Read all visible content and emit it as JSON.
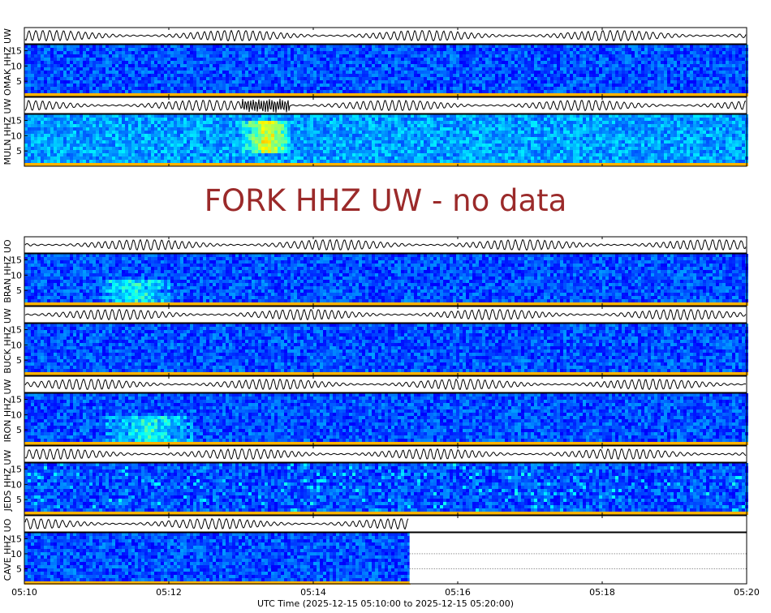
{
  "chart_data": {
    "type": "heatmap",
    "title": "",
    "xlabel": "UTC Time (2025-12-15 05:10:00 to 2025-12-15 05:20:00)",
    "x_ticks": [
      "05:10",
      "05:12",
      "05:14",
      "05:16",
      "05:18",
      "05:20"
    ],
    "xlim": [
      "05:10",
      "05:20"
    ],
    "y_ticks": [
      5,
      10,
      15
    ],
    "ylim": [
      0,
      17
    ],
    "colormap": "jet",
    "panels": [
      {
        "station": "OMAK HHZ UW",
        "data_end": "05:20",
        "event": null
      },
      {
        "station": "MULN HHZ UW",
        "data_end": "05:20",
        "event": {
          "start": "05:13:00",
          "end": "05:13:40",
          "band": [
            4,
            15
          ]
        }
      },
      {
        "station": "FORK HHZ UW",
        "status": "FORK HHZ UW - no data"
      },
      {
        "station": "BRAN HHZ UO",
        "data_end": "05:20",
        "event": {
          "start": "05:11:00",
          "end": "05:12:00",
          "band": [
            1,
            8
          ]
        }
      },
      {
        "station": "BUCK HHZ UW",
        "data_end": "05:20",
        "event": null
      },
      {
        "station": "IRON HHZ UW",
        "data_end": "05:20",
        "event": {
          "start": "05:11:05",
          "end": "05:12:20",
          "band": [
            1,
            10
          ]
        }
      },
      {
        "station": "JEDS HHZ UW",
        "data_end": "05:20",
        "event": null
      },
      {
        "station": "CAVE HHZ UO",
        "data_end": "05:15:20",
        "event": null
      }
    ]
  }
}
